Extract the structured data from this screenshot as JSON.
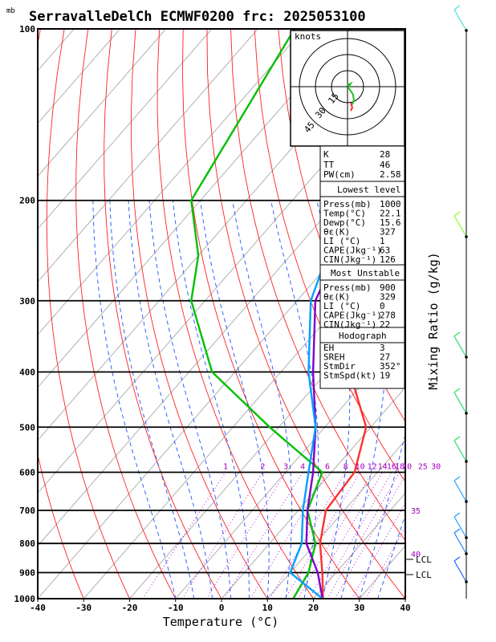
{
  "title": "SerravalleDelCh ECMWF0200 frc: 2025053100",
  "pressure_unit": "mb",
  "x_axis_title": "Temperature (°C)",
  "right_axis_title": "Mixing Ratio (g/kg)",
  "hodograph": {
    "unit_label": "knots",
    "ring_labels": [
      "15",
      "30",
      "45"
    ]
  },
  "indices": {
    "k": {
      "label": "K",
      "value": "28"
    },
    "tt": {
      "label": "TT",
      "value": "46"
    },
    "pw": {
      "label": "PW(cm)",
      "value": "2.58"
    }
  },
  "lowest_level": {
    "header": "Lowest level",
    "rows": [
      {
        "label": "Press(mb)",
        "value": "1000"
      },
      {
        "label": "Temp(°C)",
        "value": "22.1"
      },
      {
        "label": "Dewp(°C)",
        "value": "15.6"
      },
      {
        "label": "θε(K)",
        "value": "327"
      },
      {
        "label": "LI (°C)",
        "value": "1"
      },
      {
        "label": "CAPE(Jkg⁻¹)",
        "value": "63"
      },
      {
        "label": "CIN(Jkg⁻¹)",
        "value": "126"
      }
    ]
  },
  "most_unstable": {
    "header": "Most Unstable",
    "rows": [
      {
        "label": "Press(mb)",
        "value": "900"
      },
      {
        "label": "θε(K)",
        "value": "329"
      },
      {
        "label": "LI (°C)",
        "value": "0"
      },
      {
        "label": "CAPE(Jkg⁻¹)",
        "value": "278"
      },
      {
        "label": "CIN(Jkg⁻¹)",
        "value": "22"
      }
    ]
  },
  "hodograph_block": {
    "header": "Hodograph",
    "rows": [
      {
        "label": "EH",
        "value": "3"
      },
      {
        "label": "SREH",
        "value": "27"
      },
      {
        "label": "StmDir",
        "value": "352°"
      },
      {
        "label": "StmSpd(kt)",
        "value": "19"
      }
    ]
  },
  "lcl_labels": [
    "LCL",
    "LCL"
  ],
  "chart_data": {
    "type": "line",
    "x_label": "Temperature (°C)",
    "y_label": "mb",
    "pressure_ticks": [
      100,
      200,
      300,
      400,
      500,
      600,
      700,
      800,
      900,
      1000
    ],
    "temperature_ticks": [
      -40,
      -30,
      -20,
      -10,
      0,
      10,
      20,
      30,
      40
    ],
    "mixing_ratio_labels": [
      "1",
      "2",
      "3",
      "4",
      "6",
      "8",
      "10",
      "12",
      "14",
      "16",
      "18",
      "20",
      "25",
      "30"
    ],
    "isotherm_labels_right": [
      "35",
      "40"
    ],
    "series": [
      {
        "p": [
          100,
          200,
          250,
          300,
          400,
          500,
          600,
          700,
          800,
          900,
          1000
        ],
        "t": [
          -16,
          -27,
          -34,
          -28,
          -15,
          -1,
          5,
          6,
          11,
          17,
          22.1
        ],
        "color": "#ff3030"
      },
      {
        "p": [
          100,
          200,
          250,
          300,
          400,
          500,
          600,
          700,
          800,
          900,
          1000
        ],
        "t": [
          -92,
          -82,
          -70,
          -63,
          -45,
          -22,
          -2,
          2,
          10,
          14,
          15.6
        ],
        "color": "#00c000"
      },
      {
        "p": [
          110,
          200,
          250,
          300,
          400,
          500,
          600,
          700,
          800,
          900,
          1000
        ],
        "t": [
          -31,
          -42,
          -40,
          -36,
          -23,
          -12,
          -4,
          2,
          8,
          16,
          22
        ],
        "color": "#8000c8"
      },
      {
        "p": [
          115,
          200,
          250,
          300,
          400,
          500,
          600,
          700,
          800,
          900,
          1000
        ],
        "t": [
          -36,
          -45,
          -42,
          -37,
          -24,
          -12,
          -5,
          1,
          7,
          10,
          22
        ],
        "color": "#00a0ff"
      }
    ]
  }
}
